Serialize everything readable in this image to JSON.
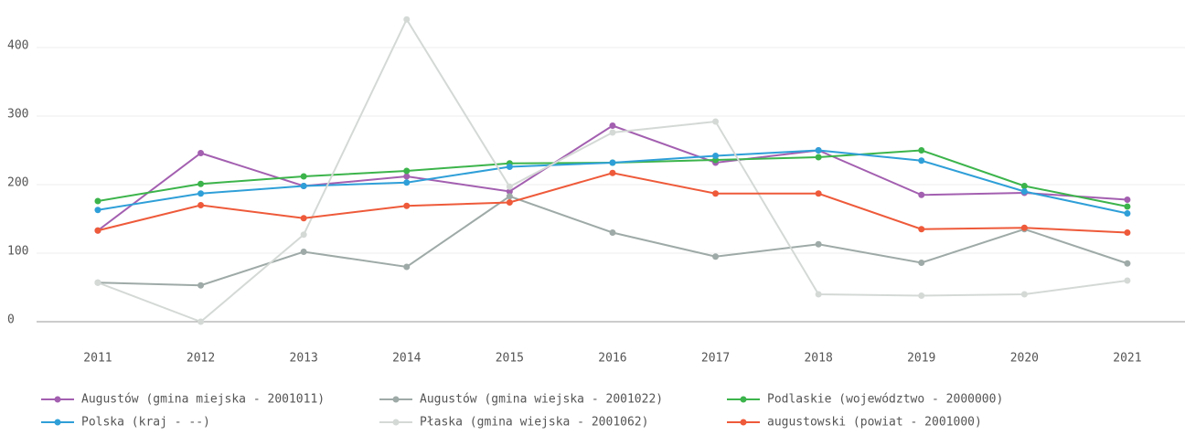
{
  "chart_data": {
    "type": "line",
    "x": [
      2011,
      2012,
      2013,
      2014,
      2015,
      2016,
      2017,
      2018,
      2019,
      2020,
      2021
    ],
    "xlim": [
      2010.05,
      2021.56
    ],
    "xticks": [
      2011,
      2012,
      2013,
      2014,
      2015,
      2016,
      2017,
      2018,
      2019,
      2020,
      2021
    ],
    "ylim": [
      -24,
      456
    ],
    "yticks": [
      0,
      100,
      200,
      300,
      400
    ],
    "grid": true,
    "legend": "bottom",
    "series": [
      {
        "name": "Augustów (gmina miejska - 2001011)",
        "color": "#a35fb0",
        "values": [
          133,
          246,
          198,
          212,
          190,
          286,
          232,
          250,
          185,
          188,
          178
        ]
      },
      {
        "name": "Augustów (gmina wiejska - 2001022)",
        "color": "#9eaaa7",
        "values": [
          57,
          53,
          102,
          80,
          183,
          130,
          95,
          113,
          86,
          135,
          85
        ]
      },
      {
        "name": "Podlaskie (województwo - 2000000)",
        "color": "#3cb44b",
        "values": [
          176,
          201,
          212,
          220,
          231,
          232,
          236,
          240,
          250,
          198,
          168
        ]
      },
      {
        "name": "Polska (kraj - --)",
        "color": "#2f9fd8",
        "values": [
          163,
          187,
          198,
          203,
          226,
          232,
          242,
          250,
          235,
          190,
          158
        ]
      },
      {
        "name": "Płaska (gmina wiejska - 2001062)",
        "color": "#d4d9d6",
        "values": [
          57,
          0,
          127,
          441,
          197,
          276,
          292,
          40,
          38,
          40,
          60
        ]
      },
      {
        "name": "augustowski (powiat - 2001000)",
        "color": "#ee5a3a",
        "values": [
          133,
          170,
          151,
          169,
          174,
          217,
          187,
          187,
          135,
          137,
          130
        ]
      }
    ]
  }
}
